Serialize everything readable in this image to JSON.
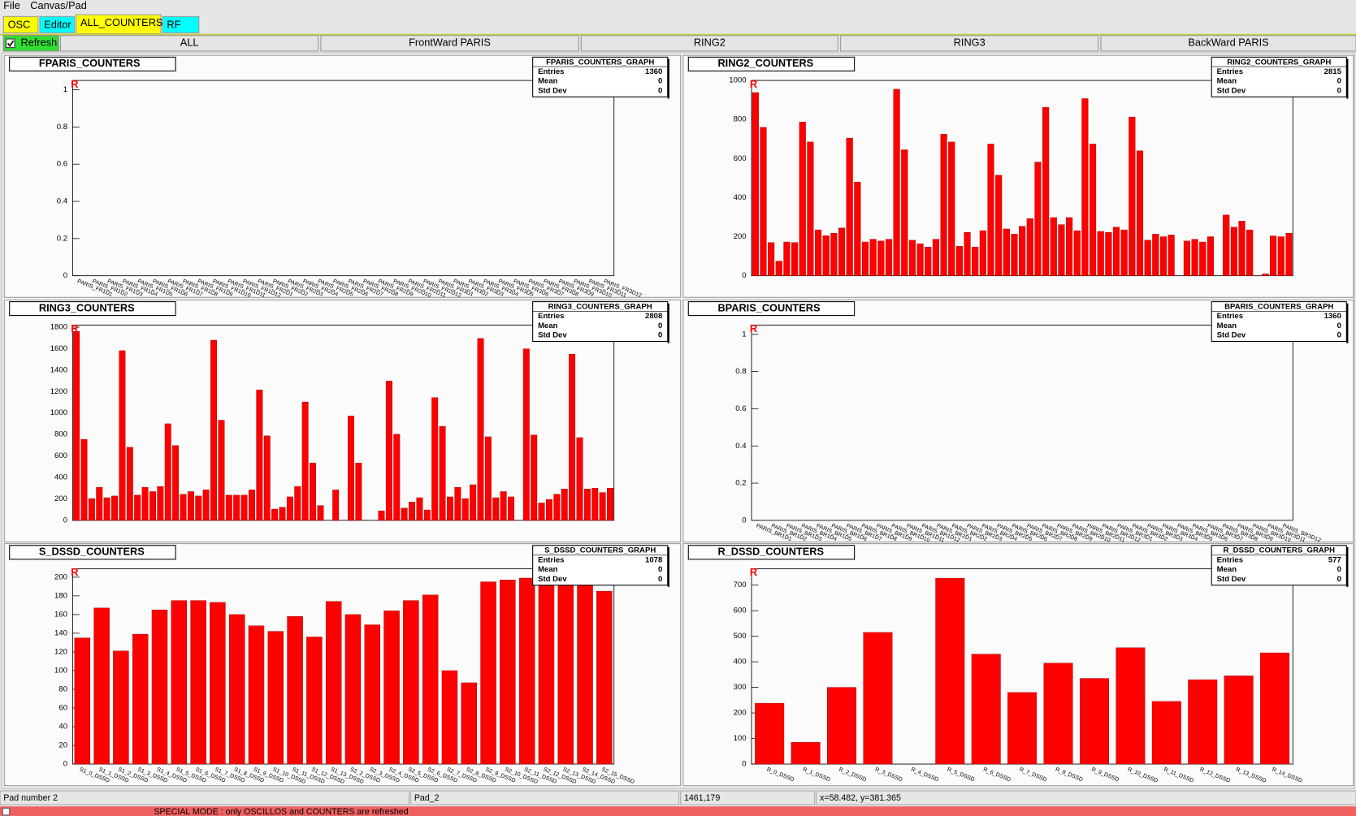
{
  "menu": [
    "File",
    "Canvas/Pad"
  ],
  "tabs": [
    {
      "label": "OSC",
      "color": "#ffff00"
    },
    {
      "label": "Editor",
      "color": "#00ffff"
    },
    {
      "label": "ALL_COUNTERS",
      "color": "#ffff00"
    },
    {
      "label": "RF",
      "color": "#00ffff"
    }
  ],
  "toolbar": {
    "refresh": "Refresh",
    "buttons": [
      "ALL",
      "FrontWard PARIS",
      "RING2",
      "RING3",
      "BackWard PARIS"
    ]
  },
  "chart_data": [
    {
      "type": "bar",
      "title": "FPARIS_COUNTERS",
      "corner_label": "R",
      "color": "#ff0000",
      "stats": {
        "title": "FPARIS_COUNTERS_GRAPH",
        "labels": [
          "Entries",
          "Mean",
          "Std Dev"
        ],
        "values": [
          1360,
          0,
          0
        ]
      },
      "categories": [
        "PARIS_FR1D1",
        "PARIS_FR1D2",
        "PARIS_FR1D3",
        "PARIS_FR1D4",
        "PARIS_FR1D5",
        "PARIS_FR1D6",
        "PARIS_FR1D7",
        "PARIS_FR1D8",
        "PARIS_FR1D9",
        "PARIS_FR1D10",
        "PARIS_FR1D11",
        "PARIS_FR1D12",
        "PARIS_FR2D1",
        "PARIS_FR2D2",
        "PARIS_FR2D3",
        "PARIS_FR2D4",
        "PARIS_FR2D5",
        "PARIS_FR2D6",
        "PARIS_FR2D7",
        "PARIS_FR2D8",
        "PARIS_FR2D9",
        "PARIS_FR2D10",
        "PARIS_FR2D11",
        "PARIS_FR2D12",
        "PARIS_FR3D1",
        "PARIS_FR3D2",
        "PARIS_FR3D3",
        "PARIS_FR3D4",
        "PARIS_FR3D5",
        "PARIS_FR3D6",
        "PARIS_FR3D7",
        "PARIS_FR3D8",
        "PARIS_FR3D9",
        "PARIS_FR3D10",
        "PARIS_FR3D11",
        "PARIS_FR3D12"
      ],
      "values": [
        0,
        0,
        0,
        0,
        0,
        0,
        0,
        0,
        0,
        0,
        0,
        0,
        0,
        0,
        0,
        0,
        0,
        0,
        0,
        0,
        0,
        0,
        0,
        0,
        0,
        0,
        0,
        0,
        0,
        0,
        0,
        0,
        0,
        0,
        0,
        0
      ],
      "ylim": [
        0,
        1.05
      ],
      "yticks": [
        0,
        0.2,
        0.4,
        0.6,
        0.8,
        1
      ]
    },
    {
      "type": "bar",
      "title": "RING2_COUNTERS",
      "corner_label": "R",
      "color": "#ff0000",
      "stats": {
        "title": "RING2_COUNTERS_GRAPH",
        "labels": [
          "Entries",
          "Mean",
          "Std Dev"
        ],
        "values": [
          2815,
          0,
          0
        ]
      },
      "categories": [
        null,
        null,
        null,
        null,
        null,
        null,
        null,
        null,
        null,
        null,
        null,
        null,
        null,
        null,
        null,
        null,
        null,
        null,
        null,
        null,
        null,
        null,
        null,
        null,
        null,
        null,
        null,
        null,
        null,
        null,
        null,
        null,
        null,
        null,
        null,
        null,
        null,
        null,
        null,
        null,
        null,
        null,
        null,
        null,
        null,
        null,
        null,
        null,
        null,
        null,
        null,
        null,
        null,
        null,
        null,
        null,
        null,
        null,
        null,
        null,
        null,
        null,
        null,
        null,
        null,
        null,
        null,
        null,
        null
      ],
      "values": [
        938,
        760,
        170,
        75,
        173,
        170,
        787,
        685,
        235,
        205,
        218,
        245,
        705,
        480,
        173,
        187,
        178,
        187,
        955,
        645,
        182,
        164,
        147,
        187,
        725,
        685,
        151,
        222,
        147,
        231,
        675,
        515,
        240,
        213,
        253,
        293,
        582,
        862,
        298,
        262,
        298,
        231,
        907,
        675,
        227,
        222,
        249,
        235,
        813,
        640,
        182,
        213,
        200,
        209,
        0,
        178,
        187,
        173,
        200,
        0,
        311,
        249,
        280,
        235,
        0,
        10,
        204,
        200,
        218
      ],
      "ylim": [
        0,
        1000
      ],
      "yticks": [
        0,
        200,
        400,
        600,
        800,
        1000
      ]
    },
    {
      "type": "bar",
      "title": "RING3_COUNTERS",
      "corner_label": "R",
      "color": "#ff0000",
      "stats": {
        "title": "RING3_COUNTERS_GRAPH",
        "labels": [
          "Entries",
          "Mean",
          "Std Dev"
        ],
        "values": [
          2808,
          0,
          0
        ]
      },
      "categories": [
        null,
        null,
        null,
        null,
        null,
        null,
        null,
        null,
        null,
        null,
        null,
        null,
        null,
        null,
        null,
        null,
        null,
        null,
        null,
        null,
        null,
        null,
        null,
        null,
        null,
        null,
        null,
        null,
        null,
        null,
        null,
        null,
        null,
        null,
        null,
        null,
        null,
        null,
        null,
        null,
        null,
        null,
        null,
        null,
        null,
        null,
        null,
        null,
        null,
        null,
        null,
        null,
        null,
        null,
        null,
        null,
        null,
        null,
        null,
        null,
        null,
        null,
        null,
        null,
        null,
        null,
        null,
        null,
        null,
        null,
        null
      ],
      "values": [
        1760,
        755,
        203,
        308,
        211,
        227,
        1581,
        681,
        235,
        308,
        268,
        316,
        900,
        697,
        243,
        268,
        227,
        284,
        1679,
        933,
        235,
        235,
        235,
        284,
        1216,
        787,
        105,
        122,
        219,
        316,
        1103,
        535,
        138,
        0,
        284,
        0,
        973,
        535,
        0,
        0,
        89,
        1298,
        803,
        114,
        170,
        211,
        97,
        1144,
        876,
        219,
        308,
        203,
        332,
        1695,
        779,
        211,
        268,
        219,
        0,
        1598,
        795,
        162,
        195,
        243,
        292,
        1549,
        771,
        292,
        300,
        259,
        300
      ],
      "ylim": [
        0,
        1820
      ],
      "yticks": [
        0,
        200,
        400,
        600,
        800,
        1000,
        1200,
        1400,
        1600,
        1800
      ]
    },
    {
      "type": "bar",
      "title": "BPARIS_COUNTERS",
      "corner_label": "R",
      "color": "#ff0000",
      "stats": {
        "title": "BPARIS_COUNTERS_GRAPH",
        "labels": [
          "Entries",
          "Mean",
          "Std Dev"
        ],
        "values": [
          1360,
          0,
          0
        ]
      },
      "categories": [
        "PARIS_BR1D1",
        "PARIS_BR1D2",
        "PARIS_BR1D3",
        "PARIS_BR1D4",
        "PARIS_BR1D5",
        "PARIS_BR1D6",
        "PARIS_BR1D7",
        "PARIS_BR1D8",
        "PARIS_BR1D9",
        "PARIS_BR1D10",
        "PARIS_BR1D11",
        "PARIS_BR1D12",
        "PARIS_BR2D1",
        "PARIS_BR2D2",
        "PARIS_BR2D3",
        "PARIS_BR2D4",
        "PARIS_BR2D5",
        "PARIS_BR2D6",
        "PARIS_BR2D7",
        "PARIS_BR2D8",
        "PARIS_BR2D9",
        "PARIS_BR2D10",
        "PARIS_BR2D11",
        "PARIS_BR2D12",
        "PARIS_BR3D1",
        "PARIS_BR3D2",
        "PARIS_BR3D3",
        "PARIS_BR3D4",
        "PARIS_BR3D5",
        "PARIS_BR3D6",
        "PARIS_BR3D7",
        "PARIS_BR3D8",
        "PARIS_BR3D9",
        "PARIS_BR3D10",
        "PARIS_BR3D11",
        "PARIS_BR3D12"
      ],
      "values": [
        0,
        0,
        0,
        0,
        0,
        0,
        0,
        0,
        0,
        0,
        0,
        0,
        0,
        0,
        0,
        0,
        0,
        0,
        0,
        0,
        0,
        0,
        0,
        0,
        0,
        0,
        0,
        0,
        0,
        0,
        0,
        0,
        0,
        0,
        0,
        0
      ],
      "ylim": [
        0,
        1.05
      ],
      "yticks": [
        0,
        0.2,
        0.4,
        0.6,
        0.8,
        1
      ]
    },
    {
      "type": "bar",
      "title": "S_DSSD_COUNTERS",
      "corner_label": "R",
      "color": "#ff0000",
      "stats": {
        "title": "S_DSSD_COUNTERS_GRAPH",
        "labels": [
          "Entries",
          "Mean",
          "Std Dev"
        ],
        "values": [
          1078,
          0,
          0
        ]
      },
      "categories": [
        "S1_0_DSSD",
        "S1_1_DSSD",
        "S1_2_DSSD",
        "S1_3_DSSD",
        "S1_4_DSSD",
        "S1_5_DSSD",
        "S1_6_DSSD",
        "S1_7_DSSD",
        "S1_8_DSSD",
        "S1_9_DSSD",
        "S1_10_DSSD",
        "S1_11_DSSD",
        "S1_12_DSSD",
        "S1_13_DSSD",
        "S2_2_DSSD",
        "S2_3_DSSD",
        "S2_4_DSSD",
        "S2_5_DSSD",
        "S2_6_DSSD",
        "S2_7_DSSD",
        "S2_8_DSSD",
        "S2_9_DSSD",
        "S2_10_DSSD",
        "S2_11_DSSD",
        "S2_12_DSSD",
        "S2_13_DSSD",
        "S2_14_DSSD",
        "S2_15_DSSD"
      ],
      "values": [
        135,
        167,
        121,
        139,
        165,
        175,
        175,
        173,
        160,
        148,
        142,
        158,
        136,
        174,
        160,
        149,
        164,
        175,
        181,
        100,
        87,
        195,
        197,
        199,
        197,
        196,
        194,
        185
      ],
      "ylim": [
        0,
        209
      ],
      "yticks": [
        0,
        20,
        40,
        60,
        80,
        100,
        120,
        140,
        160,
        180,
        200
      ]
    },
    {
      "type": "bar",
      "title": "R_DSSD_COUNTERS",
      "corner_label": "R",
      "color": "#ff0000",
      "stats": {
        "title": "R_DSSD_COUNTERS_GRAPH",
        "labels": [
          "Entries",
          "Mean",
          "Std Dev"
        ],
        "values": [
          577,
          0,
          0
        ]
      },
      "categories": [
        "R_0_DSSD",
        "R_1_DSSD",
        "R_2_DSSD",
        "R_3_DSSD",
        "R_4_DSSD",
        "R_5_DSSD",
        "R_6_DSSD",
        "R_7_DSSD",
        "R_8_DSSD",
        "R_9_DSSD",
        "R_10_DSSD",
        "R_11_DSSD",
        "R_12_DSSD",
        "R_13_DSSD",
        "R_14_DSSD"
      ],
      "values": [
        238,
        85,
        300,
        515,
        0,
        727,
        430,
        280,
        395,
        335,
        455,
        245,
        330,
        345,
        435
      ],
      "ylim": [
        0,
        764
      ],
      "yticks": [
        0,
        100,
        200,
        300,
        400,
        500,
        600,
        700
      ]
    }
  ],
  "status": [
    "Pad number 2",
    "Pad_2",
    "1461,179",
    "x=58.482, y=381.365"
  ],
  "message": "SPECIAL MODE : only OSCILLOS and COUNTERS are refreshed"
}
